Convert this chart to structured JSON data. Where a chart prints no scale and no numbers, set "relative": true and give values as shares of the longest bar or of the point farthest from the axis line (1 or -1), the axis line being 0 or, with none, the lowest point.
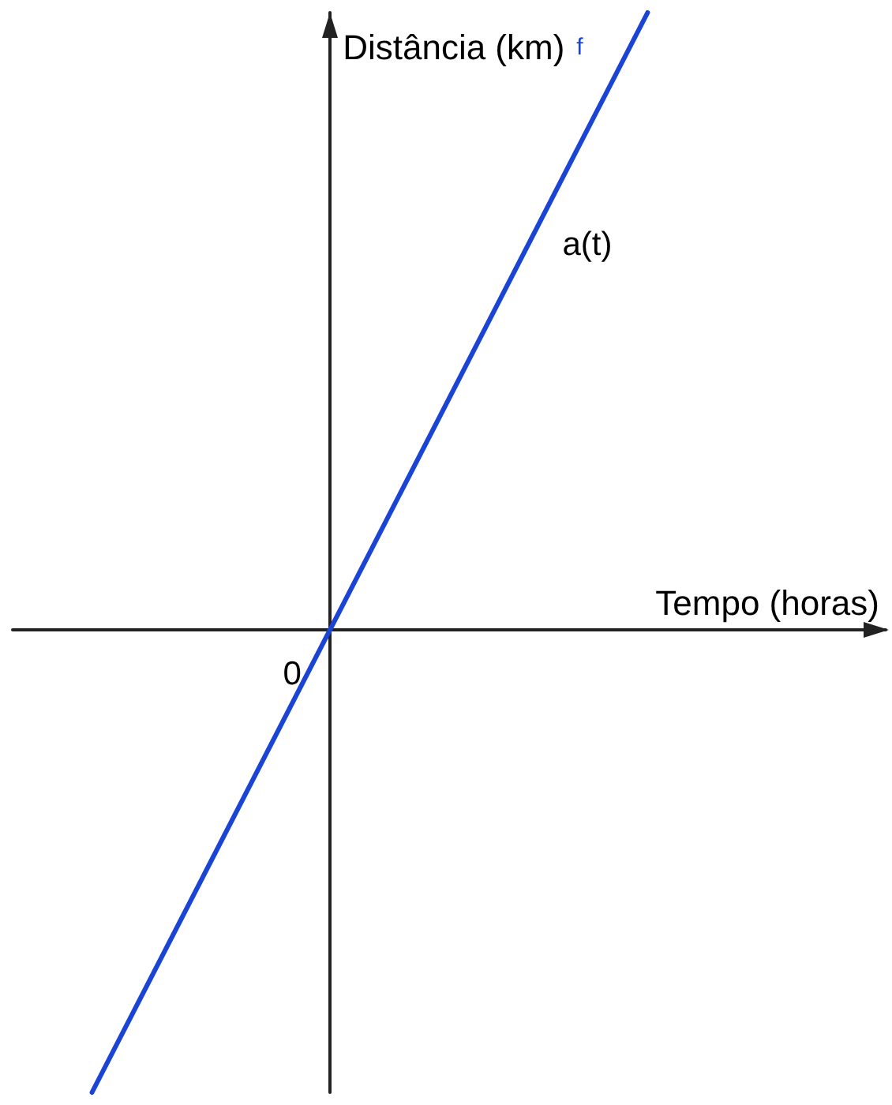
{
  "chart_data": {
    "type": "line",
    "relative": true,
    "categories": [
      null,
      null,
      null,
      null,
      null,
      null,
      null,
      null,
      null,
      null,
      null,
      null
    ],
    "series": [
      {
        "name": "f",
        "color": "#1a44d6",
        "values": [
          null,
          -0.75,
          -0.5,
          -0.25,
          0,
          0.25,
          0.5,
          0.75,
          1,
          null,
          null,
          null
        ]
      }
    ],
    "xlabel": "Tempo (horas)",
    "ylabel": "Distância (km)",
    "annotations": [
      "0",
      "a(t)"
    ]
  }
}
